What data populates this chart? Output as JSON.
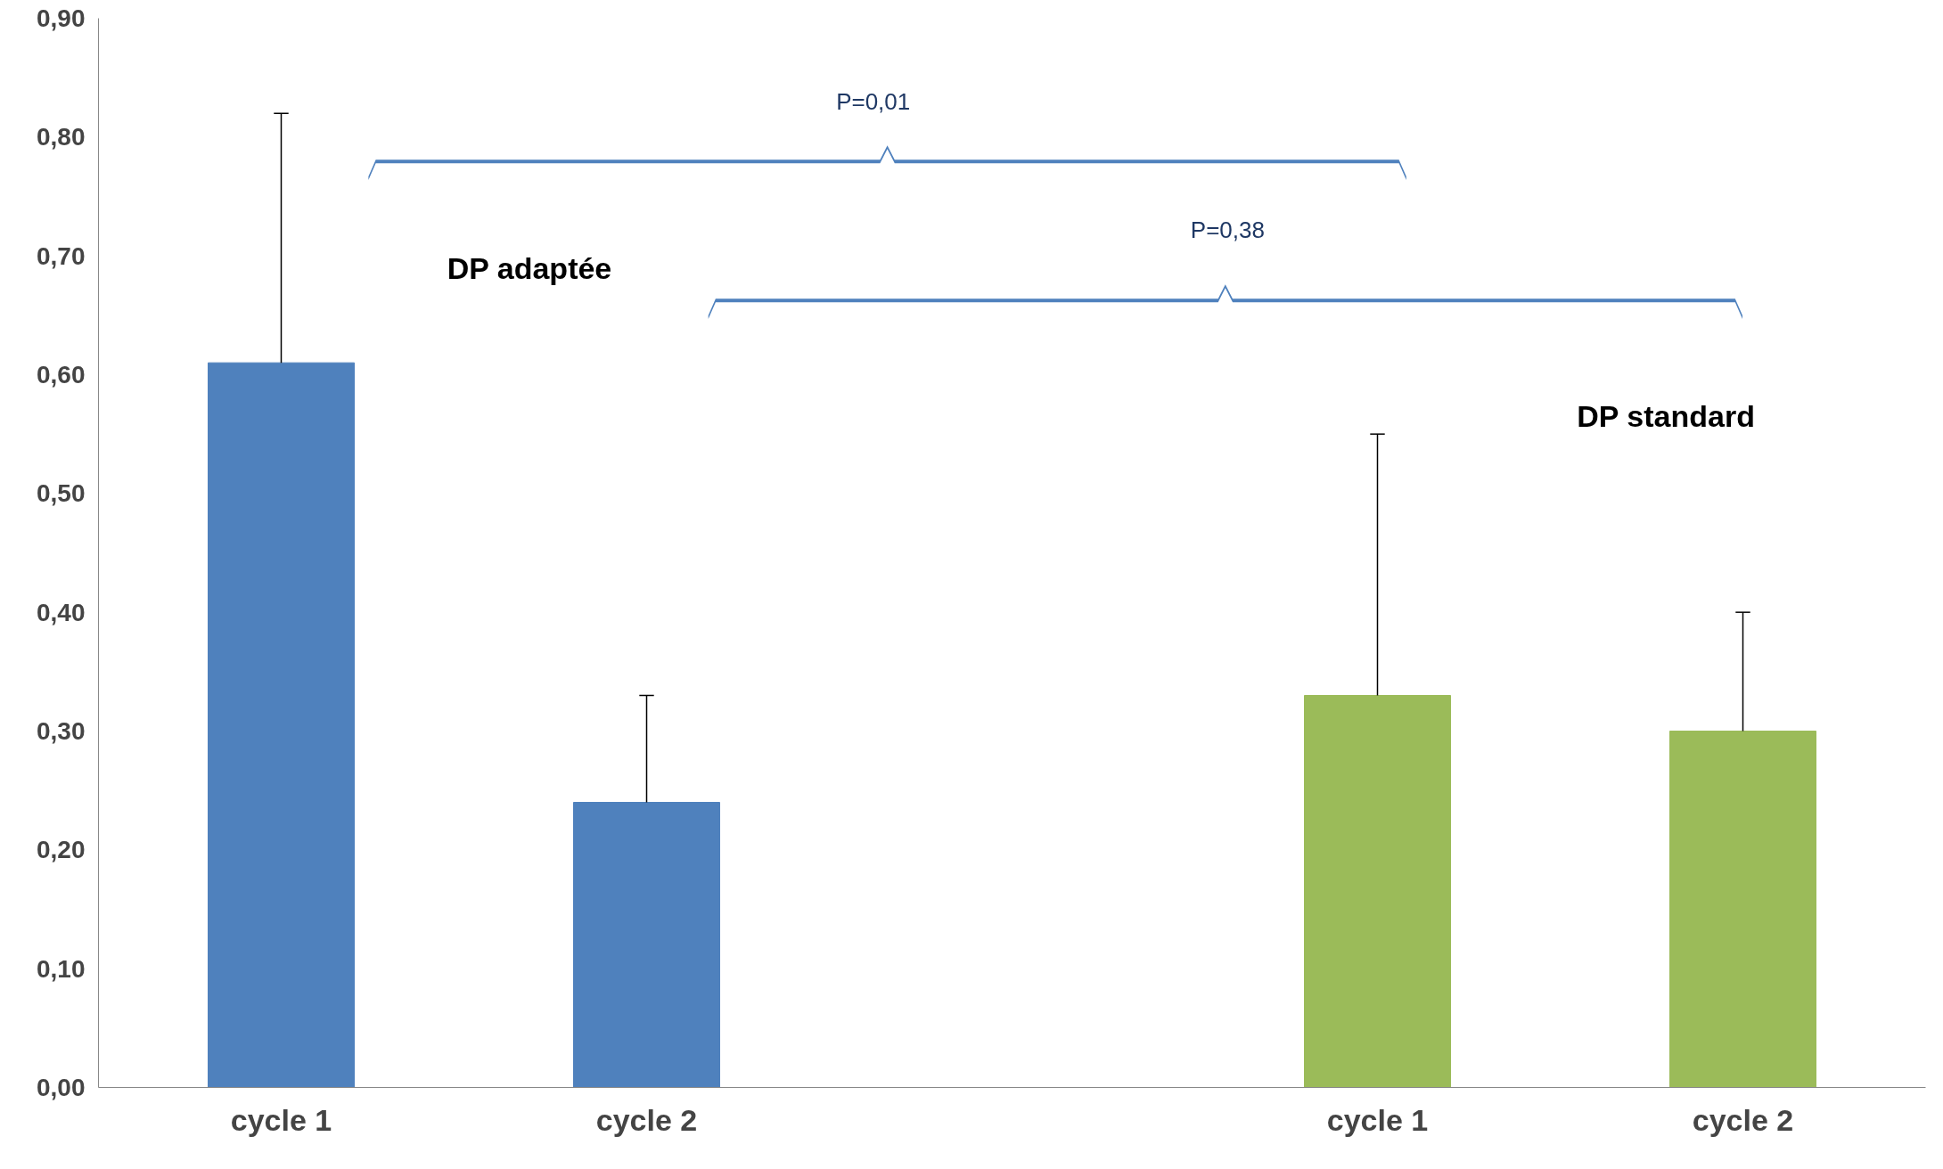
{
  "chart_data": {
    "type": "bar",
    "categories": [
      "cycle 1",
      "cycle 2",
      null,
      "cycle 1",
      "cycle 2"
    ],
    "values": [
      0.61,
      0.24,
      null,
      0.33,
      0.3
    ],
    "colors": [
      "#4f81bd",
      "#4f81bd",
      "#4f81bd",
      "#9bbb59",
      "#9bbb59"
    ],
    "errors": [
      [
        0.61,
        0.82
      ],
      [
        0.24,
        0.33
      ],
      null,
      [
        0.33,
        0.55
      ],
      [
        0.3,
        0.4
      ]
    ],
    "ylim": [
      0,
      0.9
    ],
    "yticks": [
      {
        "value": 0,
        "label": "0,00"
      },
      {
        "value": 0.1,
        "label": "0,10"
      },
      {
        "value": 0.2,
        "label": "0,20"
      },
      {
        "value": 0.3,
        "label": "0,30"
      },
      {
        "value": 0.4,
        "label": "0,40"
      },
      {
        "value": 0.5,
        "label": "0,50"
      },
      {
        "value": 0.6,
        "label": "0,60"
      },
      {
        "value": 0.7,
        "label": "0,70"
      },
      {
        "value": 0.8,
        "label": "0,80"
      },
      {
        "value": 0.9,
        "label": "0,90"
      }
    ],
    "annotations": [
      "DP adaptée",
      "DP standard",
      "P=0,01",
      "P=0,38"
    ],
    "grid": false
  }
}
